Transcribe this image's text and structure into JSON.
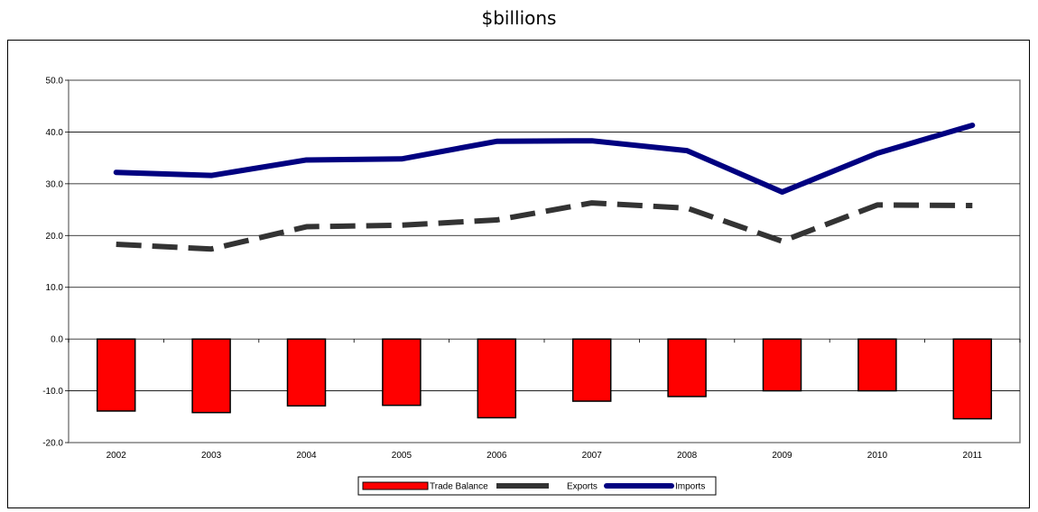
{
  "header": {
    "title": "$billions"
  },
  "chart_data": {
    "type": "bar",
    "categories": [
      "2002",
      "2003",
      "2004",
      "2005",
      "2006",
      "2007",
      "2008",
      "2009",
      "2010",
      "2011"
    ],
    "series": [
      {
        "name": "Trade Balance",
        "type": "bar",
        "color": "#ff0000",
        "values": [
          -13.9,
          -14.2,
          -12.9,
          -12.8,
          -15.2,
          -12.0,
          -11.1,
          -10.0,
          -10.0,
          -15.4
        ]
      },
      {
        "name": "Exports",
        "type": "line",
        "style": "dashed",
        "color": "#333333",
        "values": [
          18.3,
          17.4,
          21.7,
          22.0,
          23.0,
          26.3,
          25.3,
          18.9,
          25.9,
          25.8
        ]
      },
      {
        "name": "Imports",
        "type": "line",
        "style": "solid",
        "color": "#000080",
        "values": [
          32.2,
          31.6,
          34.6,
          34.8,
          38.2,
          38.3,
          36.4,
          28.4,
          35.9,
          41.3
        ]
      }
    ],
    "yticks": [
      "50.0",
      "40.0",
      "30.0",
      "20.0",
      "10.0",
      "0.0",
      "-10.0",
      "-20.0"
    ],
    "ylim": [
      -20,
      50
    ],
    "grid": true,
    "legend": "bottom-center"
  }
}
